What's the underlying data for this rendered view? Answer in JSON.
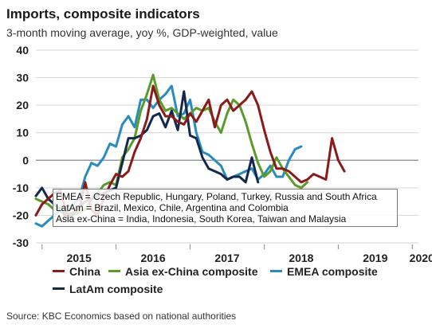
{
  "title": "Imports, composite indicators",
  "subtitle": "3-month moving average, yoy %, GDP-weighted, value",
  "source": "Source: KBC Economics based on national authorities",
  "notes": [
    "EMEA = Czech Republic, Hungary, Poland, Turkey, Russia and South Africa",
    "LatAm = Brazil, Mexico, Chile, Argentina and Colombia",
    "Asia ex-China = India, Indonesia, South Korea, Taiwan and Malaysia"
  ],
  "chart_data": {
    "type": "line",
    "title": "Imports, composite indicators",
    "ylim": [
      -30,
      40
    ],
    "yticks": [
      "40",
      "30",
      "20",
      "10",
      "0",
      "-10",
      "-20",
      "-30"
    ],
    "ytick_values": [
      40,
      30,
      20,
      10,
      0,
      -10,
      -20,
      -30
    ],
    "xticks": [
      "2015",
      "2016",
      "2017",
      "2018",
      "2019",
      "2020"
    ],
    "x_start": "2014-12",
    "x_end": "2020-02",
    "grid": true,
    "legend_position": "bottom",
    "series": [
      {
        "name": "China",
        "color": "#8b1a1a",
        "x": [
          "2014-12",
          "2015-01",
          "2015-02",
          "2015-03",
          "2015-04",
          "2015-05",
          "2015-06",
          "2015-07",
          "2015-08",
          "2015-09",
          "2015-10",
          "2015-11",
          "2015-12",
          "2016-01",
          "2016-02",
          "2016-03",
          "2016-04",
          "2016-05",
          "2016-06",
          "2016-07",
          "2016-08",
          "2016-09",
          "2016-10",
          "2016-11",
          "2016-12",
          "2017-01",
          "2017-02",
          "2017-03",
          "2017-04",
          "2017-05",
          "2017-06",
          "2017-07",
          "2017-08",
          "2017-09",
          "2017-10",
          "2017-11",
          "2017-12",
          "2018-01",
          "2018-02",
          "2018-03",
          "2018-04",
          "2018-05",
          "2018-06",
          "2018-07",
          "2018-08",
          "2018-09",
          "2018-10",
          "2018-11",
          "2018-12",
          "2019-01",
          "2019-02",
          "2019-03",
          "2019-04",
          "2019-05",
          "2019-06",
          "2019-07",
          "2019-08",
          "2019-09",
          "2019-10",
          "2019-11",
          "2019-12"
        ],
        "values": [
          -20,
          -16,
          -14,
          -12,
          -11,
          -20,
          -19,
          -18,
          -8,
          -18,
          -20,
          -14,
          -9,
          -5,
          -6,
          -4,
          3,
          8,
          15,
          27,
          20,
          16,
          16,
          14,
          13,
          17,
          14,
          18,
          22,
          12,
          20,
          22,
          18,
          20,
          22,
          25,
          20,
          11,
          3,
          -3,
          -3,
          -4,
          -6,
          -8,
          -7,
          -5,
          -6,
          -7,
          8,
          0,
          -4,
          null,
          null,
          null,
          null,
          null,
          null,
          null,
          null,
          null,
          null
        ]
      },
      {
        "name": "Asia ex-China composite",
        "color": "#5a9b2a",
        "x": [
          "2014-12",
          "2015-01",
          "2015-02",
          "2015-03",
          "2015-04",
          "2015-05",
          "2015-06",
          "2015-07",
          "2015-08",
          "2015-09",
          "2015-10",
          "2015-11",
          "2015-12",
          "2016-01",
          "2016-02",
          "2016-03",
          "2016-04",
          "2016-05",
          "2016-06",
          "2016-07",
          "2016-08",
          "2016-09",
          "2016-10",
          "2016-11",
          "2016-12",
          "2017-01",
          "2017-02",
          "2017-03",
          "2017-04",
          "2017-05",
          "2017-06",
          "2017-07",
          "2017-08",
          "2017-09",
          "2017-10",
          "2017-11",
          "2017-12",
          "2018-01",
          "2018-02",
          "2018-03",
          "2018-04",
          "2018-05",
          "2018-06",
          "2018-07",
          "2018-08",
          "2018-09",
          "2018-10",
          "2018-11",
          "2018-12",
          "2019-01",
          "2019-02",
          "2019-03",
          "2019-04",
          "2019-05",
          "2019-06",
          "2019-07",
          "2019-08",
          "2019-09",
          "2019-10",
          "2019-11",
          "2019-12"
        ],
        "values": [
          -14,
          -15,
          -16,
          -18,
          -17,
          -19,
          -20,
          -19,
          -18,
          -14,
          -12,
          -9,
          -8,
          -9,
          1,
          4,
          8,
          18,
          24,
          31,
          22,
          18,
          19,
          17,
          15,
          17,
          19,
          18,
          19,
          14,
          10,
          17,
          22,
          20,
          14,
          6,
          -1,
          -6,
          -4,
          1,
          -3,
          -6,
          -9,
          -10,
          -8,
          null,
          null,
          null,
          null,
          null,
          null,
          null,
          null,
          null,
          null,
          null,
          null,
          null,
          null,
          null,
          null
        ]
      },
      {
        "name": "EMEA composite",
        "color": "#2a8bc0",
        "x": [
          "2014-12",
          "2015-01",
          "2015-02",
          "2015-03",
          "2015-04",
          "2015-05",
          "2015-06",
          "2015-07",
          "2015-08",
          "2015-09",
          "2015-10",
          "2015-11",
          "2015-12",
          "2016-01",
          "2016-02",
          "2016-03",
          "2016-04",
          "2016-05",
          "2016-06",
          "2016-07",
          "2016-08",
          "2016-09",
          "2016-10",
          "2016-11",
          "2016-12",
          "2017-01",
          "2017-02",
          "2017-03",
          "2017-04",
          "2017-05",
          "2017-06",
          "2017-07",
          "2017-08",
          "2017-09",
          "2017-10",
          "2017-11",
          "2017-12",
          "2018-01",
          "2018-02",
          "2018-03",
          "2018-04",
          "2018-05",
          "2018-06",
          "2018-07",
          "2018-08",
          "2018-09",
          "2018-10",
          "2018-11",
          "2018-12",
          "2019-01",
          "2019-02",
          "2019-03",
          "2019-04",
          "2019-05",
          "2019-06",
          "2019-07",
          "2019-08",
          "2019-09",
          "2019-10",
          "2019-11",
          "2019-12"
        ],
        "values": [
          -23,
          -24,
          -22,
          -20,
          -18,
          -19,
          -16,
          -14,
          -6,
          -1,
          -2,
          1,
          6,
          5,
          13,
          16,
          12,
          22,
          22,
          19,
          22,
          24,
          27,
          16,
          17,
          22,
          10,
          3,
          2,
          0,
          -2,
          -7,
          -6,
          -5,
          -4,
          -3,
          -7,
          -5,
          -2,
          -6,
          -6,
          0,
          4,
          5,
          null,
          null,
          null,
          null,
          null,
          null,
          null,
          null,
          null,
          null,
          null,
          null,
          null,
          null,
          null,
          null,
          null
        ]
      },
      {
        "name": "LatAm composite",
        "color": "#14284b",
        "x": [
          "2014-12",
          "2015-01",
          "2015-02",
          "2015-03",
          "2015-04",
          "2015-05",
          "2015-06",
          "2015-07",
          "2015-08",
          "2015-09",
          "2015-10",
          "2015-11",
          "2015-12",
          "2016-01",
          "2016-02",
          "2016-03",
          "2016-04",
          "2016-05",
          "2016-06",
          "2016-07",
          "2016-08",
          "2016-09",
          "2016-10",
          "2016-11",
          "2016-12",
          "2017-01",
          "2017-02",
          "2017-03",
          "2017-04",
          "2017-05",
          "2017-06",
          "2017-07",
          "2017-08",
          "2017-09",
          "2017-10",
          "2017-11",
          "2017-12",
          "2018-01",
          "2018-02",
          "2018-03",
          "2018-04",
          "2018-05",
          "2018-06",
          "2018-07",
          "2018-08",
          "2018-09",
          "2018-10",
          "2018-11",
          "2018-12",
          "2019-01",
          "2019-02",
          "2019-03",
          "2019-04",
          "2019-05",
          "2019-06",
          "2019-07",
          "2019-08",
          "2019-09",
          "2019-10",
          "2019-11",
          "2019-12"
        ],
        "values": [
          -13,
          -10,
          -14,
          -16,
          -18,
          -21,
          -20,
          -17,
          -15,
          -14,
          -13,
          -12,
          -11,
          -10,
          -1,
          8,
          8,
          9,
          11,
          16,
          17,
          12,
          18,
          11,
          25,
          9,
          8,
          1,
          -3,
          -4,
          -5,
          -7,
          -6,
          -6,
          -8,
          1,
          -8,
          null,
          null,
          null,
          null,
          null,
          null,
          null,
          null,
          null,
          null,
          null,
          null,
          null,
          null,
          null,
          null,
          null,
          null,
          null,
          null,
          null,
          null,
          null,
          null
        ]
      }
    ]
  }
}
